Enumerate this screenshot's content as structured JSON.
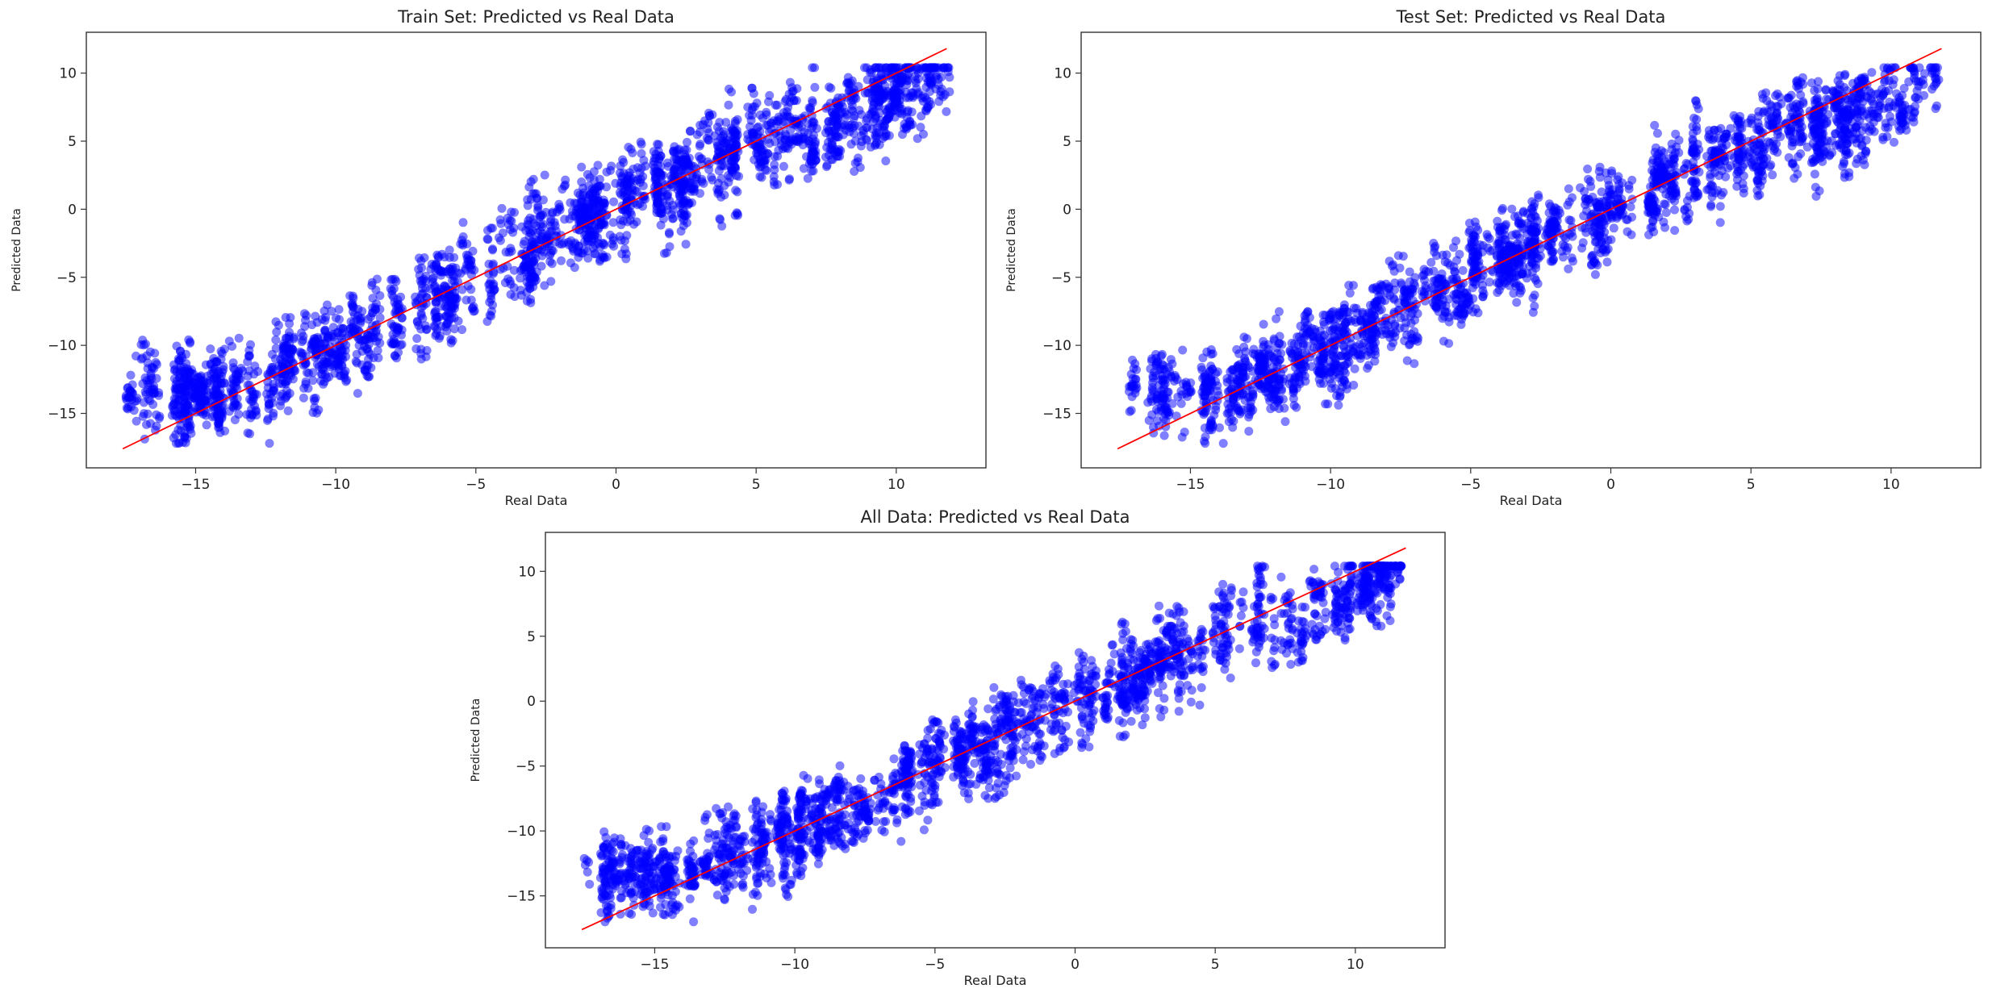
{
  "figure_title": "",
  "colors": {
    "points": "#0000ff",
    "fit_line": "#ff0000",
    "frame": "#333333"
  },
  "chart_data": [
    {
      "type": "scatter",
      "title": "Train Set: Predicted vs Real Data",
      "xlabel": "Real Data",
      "ylabel": "Predicted Data",
      "xlim": [
        -18.9,
        13.2
      ],
      "ylim": [
        -19.0,
        13.0
      ],
      "xticks": [
        -15,
        -10,
        -5,
        0,
        5,
        10
      ],
      "yticks": [
        -15,
        -10,
        -5,
        0,
        5,
        10
      ],
      "xtick_labels": [
        "−15",
        "−10",
        "−5",
        "0",
        "5",
        "10"
      ],
      "ytick_labels": [
        "−15",
        "−10",
        "−5",
        "0",
        "5",
        "10"
      ],
      "reference_line": {
        "x": [
          -17.6,
          11.8
        ],
        "y": [
          -17.6,
          11.8
        ]
      },
      "series": [
        {
          "name": "points",
          "x_range": [
            -17.5,
            11.8
          ],
          "noise": 2.2,
          "seed": 11
        }
      ]
    },
    {
      "type": "scatter",
      "title": "Test Set: Predicted vs Real Data",
      "xlabel": "Real Data",
      "ylabel": "Predicted Data",
      "xlim": [
        -18.9,
        13.2
      ],
      "ylim": [
        -19.0,
        13.0
      ],
      "xticks": [
        -15,
        -10,
        -5,
        0,
        5,
        10
      ],
      "yticks": [
        -15,
        -10,
        -5,
        0,
        5,
        10
      ],
      "xtick_labels": [
        "−15",
        "−10",
        "−5",
        "0",
        "5",
        "10"
      ],
      "ytick_labels": [
        "−15",
        "−10",
        "−5",
        "0",
        "5",
        "10"
      ],
      "reference_line": {
        "x": [
          -17.6,
          11.8
        ],
        "y": [
          -17.6,
          11.8
        ]
      },
      "series": [
        {
          "name": "points",
          "x_range": [
            -17.5,
            11.8
          ],
          "noise": 2.1,
          "seed": 23
        }
      ]
    },
    {
      "type": "scatter",
      "title": "All Data: Predicted vs Real Data",
      "xlabel": "Real Data",
      "ylabel": "Predicted Data",
      "xlim": [
        -18.9,
        13.2
      ],
      "ylim": [
        -19.0,
        13.0
      ],
      "xticks": [
        -15,
        -10,
        -5,
        0,
        5,
        10
      ],
      "yticks": [
        -15,
        -10,
        -5,
        0,
        5,
        10
      ],
      "xtick_labels": [
        "−15",
        "−10",
        "−5",
        "0",
        "5",
        "10"
      ],
      "ytick_labels": [
        "−15",
        "−10",
        "−5",
        "0",
        "5",
        "10"
      ],
      "reference_line": {
        "x": [
          -17.6,
          11.8
        ],
        "y": [
          -17.6,
          11.8
        ]
      },
      "series": [
        {
          "name": "points",
          "x_range": [
            -17.5,
            11.8
          ],
          "noise": 2.2,
          "seed": 37
        }
      ]
    }
  ]
}
